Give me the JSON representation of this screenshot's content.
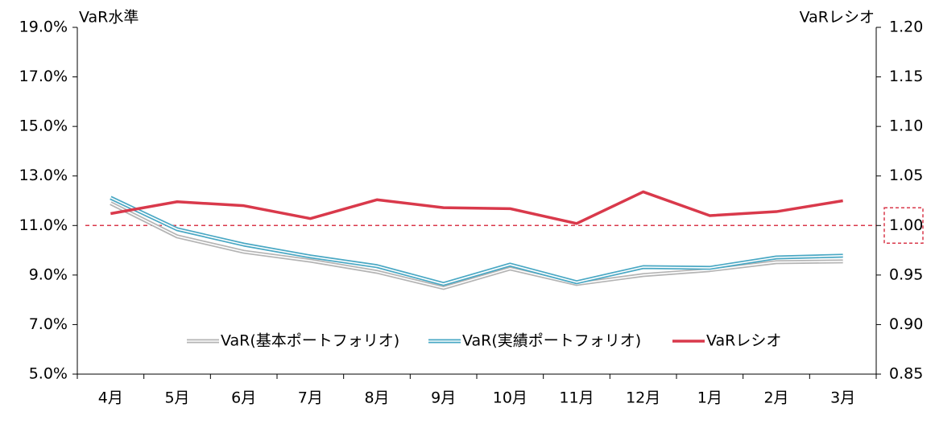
{
  "chart_data": {
    "type": "line",
    "y_label": "VaR水準",
    "y2_label": "VaRレシオ",
    "categories": [
      "4月",
      "5月",
      "6月",
      "7月",
      "8月",
      "9月",
      "10月",
      "11月",
      "12月",
      "1月",
      "2月",
      "3月"
    ],
    "series": [
      {
        "name": "VaR(基本ポートフォリオ)",
        "color": "#b4b4b4",
        "style": "double",
        "axis": "y",
        "values": [
          11.9,
          10.56,
          9.94,
          9.58,
          9.13,
          8.48,
          9.26,
          8.64,
          9.0,
          9.2,
          9.52,
          9.55
        ]
      },
      {
        "name": "VaR(実績ポートフォリオ)",
        "color": "#4aa8c4",
        "style": "double",
        "axis": "y",
        "values": [
          12.12,
          10.85,
          10.23,
          9.75,
          9.36,
          8.64,
          9.42,
          8.71,
          9.32,
          9.29,
          9.71,
          9.78
        ]
      },
      {
        "name": "VaRレシオ",
        "color": "#d9394b",
        "style": "solid",
        "axis": "y2",
        "values": [
          1.012,
          1.024,
          1.02,
          1.007,
          1.026,
          1.018,
          1.017,
          1.002,
          1.034,
          1.01,
          1.014,
          1.025
        ]
      }
    ],
    "ylim": [
      5,
      19
    ],
    "yticks": [
      {
        "value": 5,
        "label": "5.0%"
      },
      {
        "value": 7,
        "label": "7.0%"
      },
      {
        "value": 9,
        "label": "9.0%"
      },
      {
        "value": 11,
        "label": "11.0%"
      },
      {
        "value": 13,
        "label": "13.0%"
      },
      {
        "value": 15,
        "label": "15.0%"
      },
      {
        "value": 17,
        "label": "17.0%"
      },
      {
        "value": 19,
        "label": "19.0%"
      }
    ],
    "y2lim": [
      0.85,
      1.2
    ],
    "y2ticks": [
      0.85,
      {
        "value": 0.9,
        "label": "0.90"
      },
      0.95,
      {
        "value": 1.0,
        "label": "1.00"
      },
      1.05,
      {
        "value": 1.1,
        "label": "1.10"
      },
      1.15,
      {
        "value": 1.2,
        "label": "1.20"
      }
    ],
    "reference_line": {
      "value": 1.0,
      "axis": "y2",
      "color": "#d9394b"
    },
    "grid": false,
    "legend": "bottom"
  }
}
